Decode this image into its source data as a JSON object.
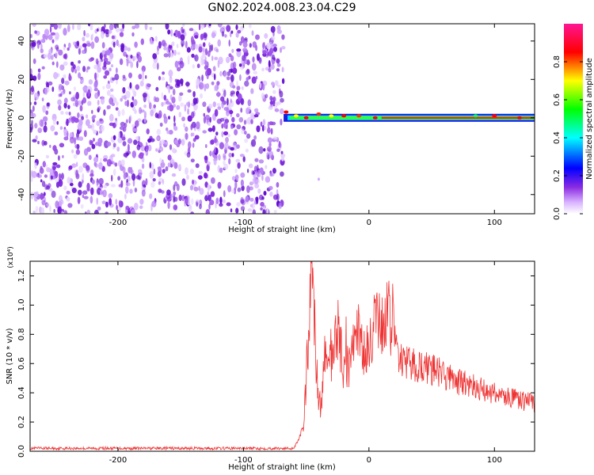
{
  "figure_title": "GN02.2024.008.23.04.C29",
  "chart_data": [
    {
      "type": "heatmap",
      "name": "spectrogram",
      "xlabel": "Height of straight line (km)",
      "ylabel": "Frequency (Hz)",
      "xlim": [
        -270,
        132
      ],
      "ylim": [
        -50,
        49
      ],
      "x_ticks": [
        -200,
        -100,
        0,
        100
      ],
      "y_ticks": [
        -40,
        -20,
        0,
        20,
        40
      ],
      "colorbar": {
        "label": "Normalized spectral amplitude",
        "range": [
          0,
          1
        ],
        "ticks": [
          0.0,
          0.2,
          0.4,
          0.6,
          0.8
        ],
        "tick_labels": [
          "0.0",
          "0.2",
          "0.4",
          "0.6",
          "0.8"
        ],
        "colormap": [
          "#ffffff",
          "#8a2be2",
          "#0000ff",
          "#00ffff",
          "#00ff00",
          "#ffff00",
          "#ff0000",
          "#ff1493"
        ]
      },
      "noise_region_x": [
        -270,
        -68
      ],
      "signal_onset_x": -68,
      "carrier_frequency": 0
    },
    {
      "type": "line",
      "name": "snr",
      "xlabel": "Height of straight line (km)",
      "ylabel": "SNR (10 * v/v)",
      "y_multiplier": "(x10⁴)",
      "xlim": [
        -270,
        132
      ],
      "ylim": [
        0,
        1.3
      ],
      "x_ticks": [
        -200,
        -100,
        0,
        100
      ],
      "y_ticks": [
        0.0,
        0.2,
        0.4,
        0.6,
        0.8,
        1.0,
        1.2
      ],
      "y_tick_labels": [
        "0.0",
        "0.2",
        "0.4",
        "0.6",
        "0.8",
        "1.0",
        "1.2"
      ],
      "color": "#ee3333",
      "series": [
        {
          "x": [
            -270,
            -250,
            -200,
            -150,
            -100,
            -60,
            -52,
            -48,
            -45,
            -42,
            -40,
            -38,
            -35,
            -30,
            -25,
            -20,
            -15,
            -10,
            -5,
            0,
            5,
            10,
            15,
            20,
            25,
            30,
            40,
            50,
            60,
            70,
            80,
            90,
            100,
            110,
            120,
            132
          ],
          "values": [
            0.02,
            0.02,
            0.02,
            0.02,
            0.02,
            0.02,
            0.15,
            0.85,
            1.25,
            0.6,
            0.35,
            0.3,
            0.75,
            0.6,
            0.85,
            0.55,
            0.6,
            0.9,
            0.65,
            0.7,
            0.9,
            0.85,
            0.95,
            0.8,
            0.62,
            0.6,
            0.58,
            0.56,
            0.52,
            0.48,
            0.45,
            0.42,
            0.4,
            0.37,
            0.35,
            0.33
          ]
        }
      ]
    }
  ]
}
